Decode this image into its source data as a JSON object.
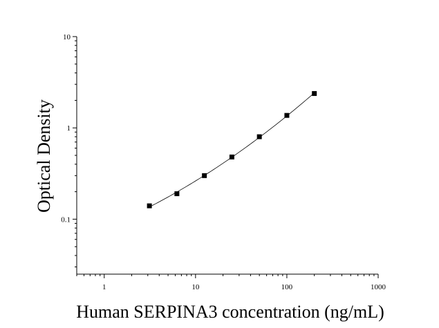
{
  "chart_data": {
    "type": "scatter",
    "title": "",
    "xlabel": "Human SERPINA3 concentration (ng/mL)",
    "ylabel": "Optical Density",
    "xscale": "log",
    "yscale": "log",
    "xlim": [
      0.5,
      1000
    ],
    "ylim": [
      0.025,
      10
    ],
    "x_ticks": [
      {
        "value": 1,
        "label": "1"
      },
      {
        "value": 10,
        "label": "10"
      },
      {
        "value": 100,
        "label": "100"
      },
      {
        "value": 1000,
        "label": "1000"
      }
    ],
    "y_ticks": [
      {
        "value": 0.1,
        "label": "0.1"
      },
      {
        "value": 1,
        "label": "1"
      },
      {
        "value": 10,
        "label": "10"
      }
    ],
    "grid": false,
    "legend": "none",
    "series": [
      {
        "x": [
          3.125,
          6.25,
          12.5,
          25,
          50,
          100,
          200
        ],
        "y": [
          0.14,
          0.19,
          0.3,
          0.48,
          0.8,
          1.37,
          2.38
        ],
        "marker": "square",
        "color": "#000000",
        "fit_curve": true
      }
    ]
  }
}
